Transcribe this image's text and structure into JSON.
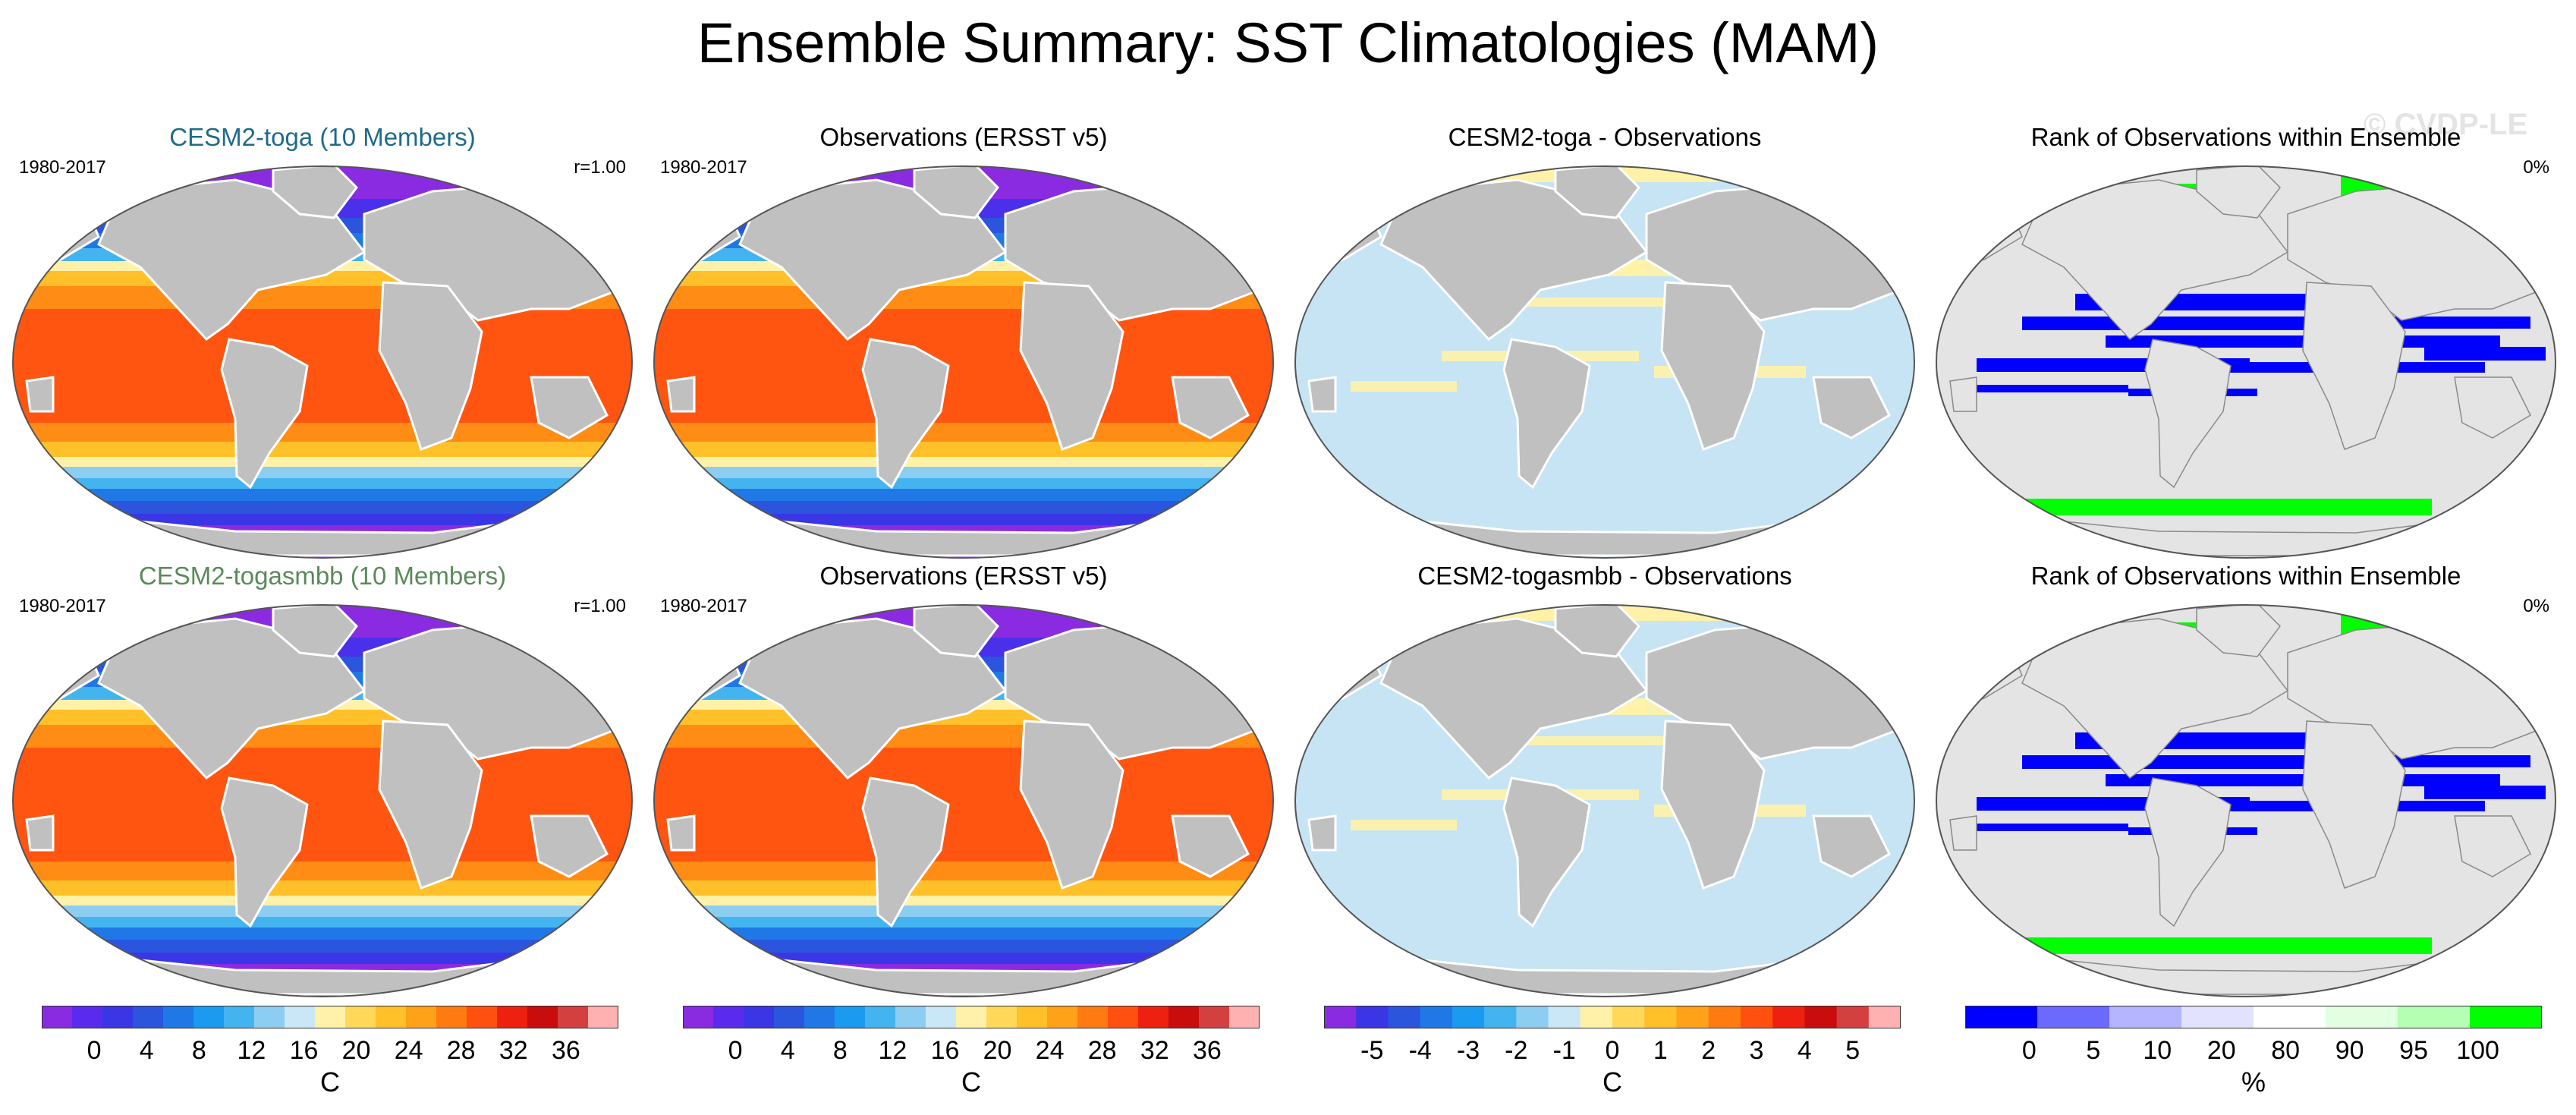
{
  "title": "Ensemble Summary: SST Climatologies (MAM)",
  "watermark": "© CVDP-LE",
  "panels": [
    {
      "title": "CESM2-toga (10 Members)",
      "title_color": "#1f6b8a",
      "left_text": "1980-2017",
      "right_text": "r=1.00",
      "kind": "sst"
    },
    {
      "title": "Observations (ERSST v5)",
      "title_color": "#000000",
      "left_text": "1980-2017",
      "right_text": "",
      "kind": "sst"
    },
    {
      "title": "CESM2-toga - Observations",
      "title_color": "#000000",
      "left_text": "",
      "right_text": "",
      "kind": "diff"
    },
    {
      "title": "Rank of Observations within Ensemble",
      "title_color": "#000000",
      "left_text": "",
      "right_text": "0%",
      "kind": "rank"
    },
    {
      "title": "CESM2-togasmbb (10 Members)",
      "title_color": "#5a8a5a",
      "left_text": "1980-2017",
      "right_text": "r=1.00",
      "kind": "sst"
    },
    {
      "title": "Observations (ERSST v5)",
      "title_color": "#000000",
      "left_text": "1980-2017",
      "right_text": "",
      "kind": "sst"
    },
    {
      "title": "CESM2-togasmbb - Observations",
      "title_color": "#000000",
      "left_text": "",
      "right_text": "",
      "kind": "diff"
    },
    {
      "title": "Rank of Observations within Ensemble",
      "title_color": "#000000",
      "left_text": "",
      "right_text": "0%",
      "kind": "rank"
    }
  ],
  "colorbars": [
    {
      "unit": "C",
      "labels": [
        "0",
        "4",
        "8",
        "12",
        "16",
        "20",
        "24",
        "28",
        "32",
        "36"
      ],
      "colors": [
        "#8a2be2",
        "#5a2bef",
        "#3a36e6",
        "#2b55dd",
        "#1f78e6",
        "#1a9bf0",
        "#44b4f0",
        "#8ccdf2",
        "#c9e7f6",
        "#fff2a8",
        "#ffd85a",
        "#ffc02a",
        "#ffa21a",
        "#ff7a10",
        "#ff5010",
        "#ee2010",
        "#c90c0c",
        "#d44040",
        "#ffb0b0"
      ]
    },
    {
      "unit": "C",
      "labels": [
        "0",
        "4",
        "8",
        "12",
        "16",
        "20",
        "24",
        "28",
        "32",
        "36"
      ],
      "colors": [
        "#8a2be2",
        "#5a2bef",
        "#3a36e6",
        "#2b55dd",
        "#1f78e6",
        "#1a9bf0",
        "#44b4f0",
        "#8ccdf2",
        "#c9e7f6",
        "#fff2a8",
        "#ffd85a",
        "#ffc02a",
        "#ffa21a",
        "#ff7a10",
        "#ff5010",
        "#ee2010",
        "#c90c0c",
        "#d44040",
        "#ffb0b0"
      ]
    },
    {
      "unit": "C",
      "labels": [
        "-5",
        "-4",
        "-3",
        "-2",
        "-1",
        "0",
        "1",
        "2",
        "3",
        "4",
        "5"
      ],
      "colors": [
        "#8a2be2",
        "#3a36e6",
        "#2b55dd",
        "#1f78e6",
        "#1a9bf0",
        "#44b4f0",
        "#8ccdf2",
        "#c9e7f6",
        "#fff2a8",
        "#ffd85a",
        "#ffc02a",
        "#ffa21a",
        "#ff7a10",
        "#ff5010",
        "#ee2010",
        "#c90c0c",
        "#d44040",
        "#ffb0b0"
      ]
    },
    {
      "unit": "%",
      "labels": [
        "0",
        "5",
        "10",
        "20",
        "80",
        "90",
        "95",
        "100"
      ],
      "colors": [
        "#0000ff",
        "#6a6aff",
        "#b4b4ff",
        "#e2e2ff",
        "#ffffff",
        "#e2ffe2",
        "#b4ffb4",
        "#00ff00"
      ]
    }
  ]
}
